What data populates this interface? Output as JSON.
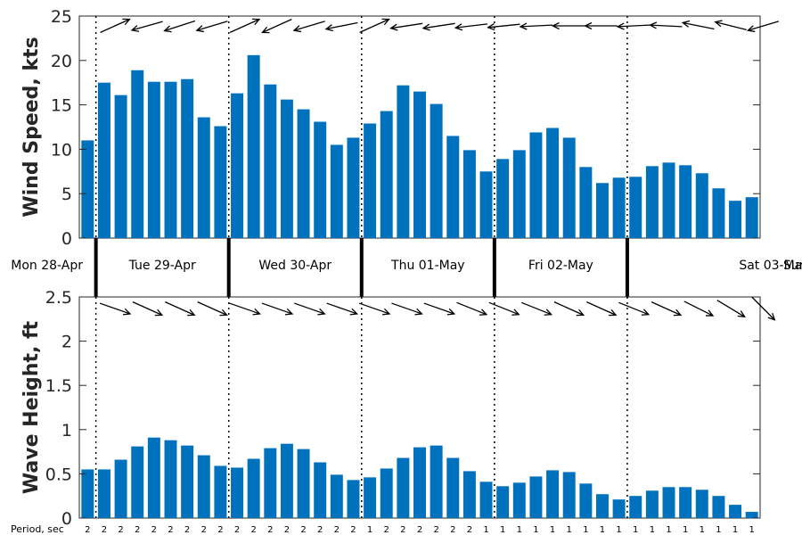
{
  "chart_data": [
    {
      "type": "bar",
      "ylabel": "Wind Speed, kts",
      "ylim": [
        0,
        25
      ],
      "yticks": [
        0,
        5,
        10,
        15,
        20,
        25
      ],
      "color": "#0072BD",
      "values": [
        11.0,
        17.5,
        16.1,
        18.9,
        17.6,
        17.6,
        17.9,
        13.6,
        12.6,
        16.3,
        20.6,
        17.3,
        15.6,
        14.5,
        13.1,
        10.5,
        11.3,
        12.9,
        14.3,
        17.2,
        16.5,
        15.1,
        11.5,
        9.9,
        7.5,
        8.9,
        9.9,
        11.9,
        12.4,
        11.3,
        8.0,
        6.2,
        6.8,
        6.9,
        8.1,
        8.5,
        8.2,
        7.3,
        5.6,
        4.2,
        4.6
      ],
      "direction_arrows": [
        {
          "dx": 1,
          "dy": -0.45
        },
        {
          "dx": -1,
          "dy": 0.28
        },
        {
          "dx": -1,
          "dy": 0.32
        },
        {
          "dx": -1,
          "dy": 0.3
        },
        {
          "dx": 1,
          "dy": -0.45
        },
        {
          "dx": -1,
          "dy": 0.45
        },
        {
          "dx": -1,
          "dy": 0.3
        },
        {
          "dx": -1,
          "dy": 0.2
        },
        {
          "dx": 1,
          "dy": -0.45
        },
        {
          "dx": -1,
          "dy": 0.15
        },
        {
          "dx": -1,
          "dy": 0.15
        },
        {
          "dx": -1,
          "dy": 0.12
        },
        {
          "dx": -1,
          "dy": 0.1
        },
        {
          "dx": -1,
          "dy": 0.05
        },
        {
          "dx": -1,
          "dy": 0.0
        },
        {
          "dx": -1,
          "dy": 0.0
        },
        {
          "dx": -1,
          "dy": 0.05
        },
        {
          "dx": -1,
          "dy": -0.05
        },
        {
          "dx": -1,
          "dy": -0.2
        },
        {
          "dx": -1,
          "dy": -0.25
        },
        {
          "dx": -1,
          "dy": 0.3
        }
      ]
    },
    {
      "type": "bar",
      "ylabel": "Wave Height, ft",
      "ylim": [
        0,
        2.5
      ],
      "yticks": [
        "0",
        "0.5",
        "1",
        "1.5",
        "2",
        "2.5"
      ],
      "color": "#0072BD",
      "values": [
        0.55,
        0.55,
        0.66,
        0.81,
        0.91,
        0.88,
        0.82,
        0.71,
        0.59,
        0.57,
        0.67,
        0.79,
        0.84,
        0.78,
        0.63,
        0.49,
        0.43,
        0.46,
        0.56,
        0.68,
        0.8,
        0.82,
        0.68,
        0.53,
        0.41,
        0.36,
        0.4,
        0.47,
        0.54,
        0.52,
        0.39,
        0.27,
        0.21,
        0.25,
        0.31,
        0.35,
        0.35,
        0.32,
        0.25,
        0.15,
        0.07
      ],
      "direction_arrows": [
        {
          "dx": 1,
          "dy": 0.35
        },
        {
          "dx": 1,
          "dy": 0.45
        },
        {
          "dx": 1,
          "dy": 0.45
        },
        {
          "dx": 1,
          "dy": 0.45
        },
        {
          "dx": 1,
          "dy": 0.35
        },
        {
          "dx": 1,
          "dy": 0.35
        },
        {
          "dx": 1,
          "dy": 0.35
        },
        {
          "dx": 1,
          "dy": 0.35
        },
        {
          "dx": 1,
          "dy": 0.35
        },
        {
          "dx": 1,
          "dy": 0.35
        },
        {
          "dx": 1,
          "dy": 0.35
        },
        {
          "dx": 1,
          "dy": 0.4
        },
        {
          "dx": 1,
          "dy": 0.4
        },
        {
          "dx": 1,
          "dy": 0.4
        },
        {
          "dx": 1,
          "dy": 0.45
        },
        {
          "dx": 1,
          "dy": 0.45
        },
        {
          "dx": 1,
          "dy": 0.4
        },
        {
          "dx": 1,
          "dy": 0.45
        },
        {
          "dx": 1,
          "dy": 0.5
        },
        {
          "dx": 1,
          "dy": 0.6
        },
        {
          "dx": 1,
          "dy": 1.0
        }
      ]
    }
  ],
  "days": [
    "Mon 28-Apr",
    "Tue 29-Apr",
    "Wed 30-Apr",
    "Thu 01-May",
    "Fri 02-May",
    "Sat 03-May",
    "Sun"
  ],
  "day_boundaries_after_bar": [
    0.5,
    8.5,
    16.5,
    24.5,
    32.5
  ],
  "period": {
    "label": "Period, sec",
    "values": [
      2,
      2,
      2,
      2,
      2,
      2,
      2,
      2,
      2,
      2,
      2,
      2,
      2,
      2,
      2,
      2,
      2,
      1,
      2,
      2,
      2,
      2,
      2,
      2,
      1,
      1,
      1,
      1,
      1,
      1,
      1,
      1,
      1,
      1,
      1,
      1,
      1,
      1,
      1,
      1,
      1
    ]
  }
}
